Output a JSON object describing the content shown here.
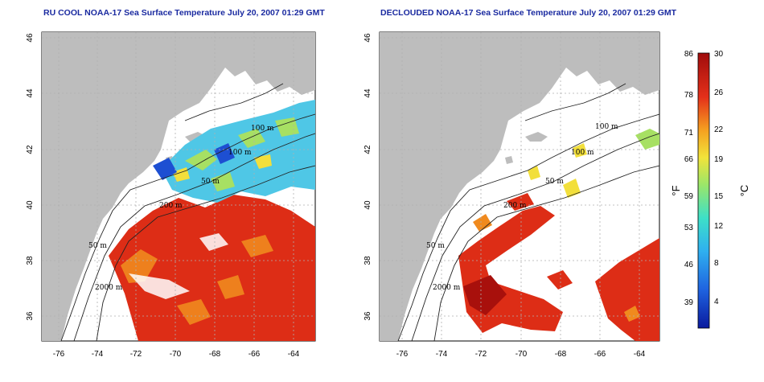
{
  "panels": [
    {
      "title": "RU COOL NOAA-17 Sea Surface Temperature July 20, 2007 01:29 GMT"
    },
    {
      "title": "DECLOUDED NOAA-17 Sea Surface Temperature July 20, 2007 01:29 GMT"
    }
  ],
  "axes": {
    "lon_ticks": [
      "-76",
      "-74",
      "-72",
      "-70",
      "-68",
      "-66",
      "-64"
    ],
    "lat_ticks": [
      "46",
      "44",
      "42",
      "40",
      "38",
      "36"
    ]
  },
  "contour_labels": [
    "100 m",
    "100 m",
    "50 m",
    "200 m",
    "50 m",
    "2000 m"
  ],
  "colorbar": {
    "f_ticks": [
      "86",
      "78",
      "71",
      "66",
      "59",
      "53",
      "46",
      "39"
    ],
    "c_ticks": [
      "30",
      "26",
      "22",
      "19",
      "15",
      "12",
      "8",
      "4"
    ],
    "f_unit": "°F",
    "c_unit": "°C",
    "colors": [
      "#0a1a9e",
      "#1f63e0",
      "#2fb0f0",
      "#3de0c8",
      "#9ae66a",
      "#f2e43a",
      "#f5a020",
      "#e4301a",
      "#a00c0c"
    ]
  },
  "colors": {
    "land": "#bdbdbd",
    "warm": "#d92a14",
    "title": "#1a2aa0"
  }
}
